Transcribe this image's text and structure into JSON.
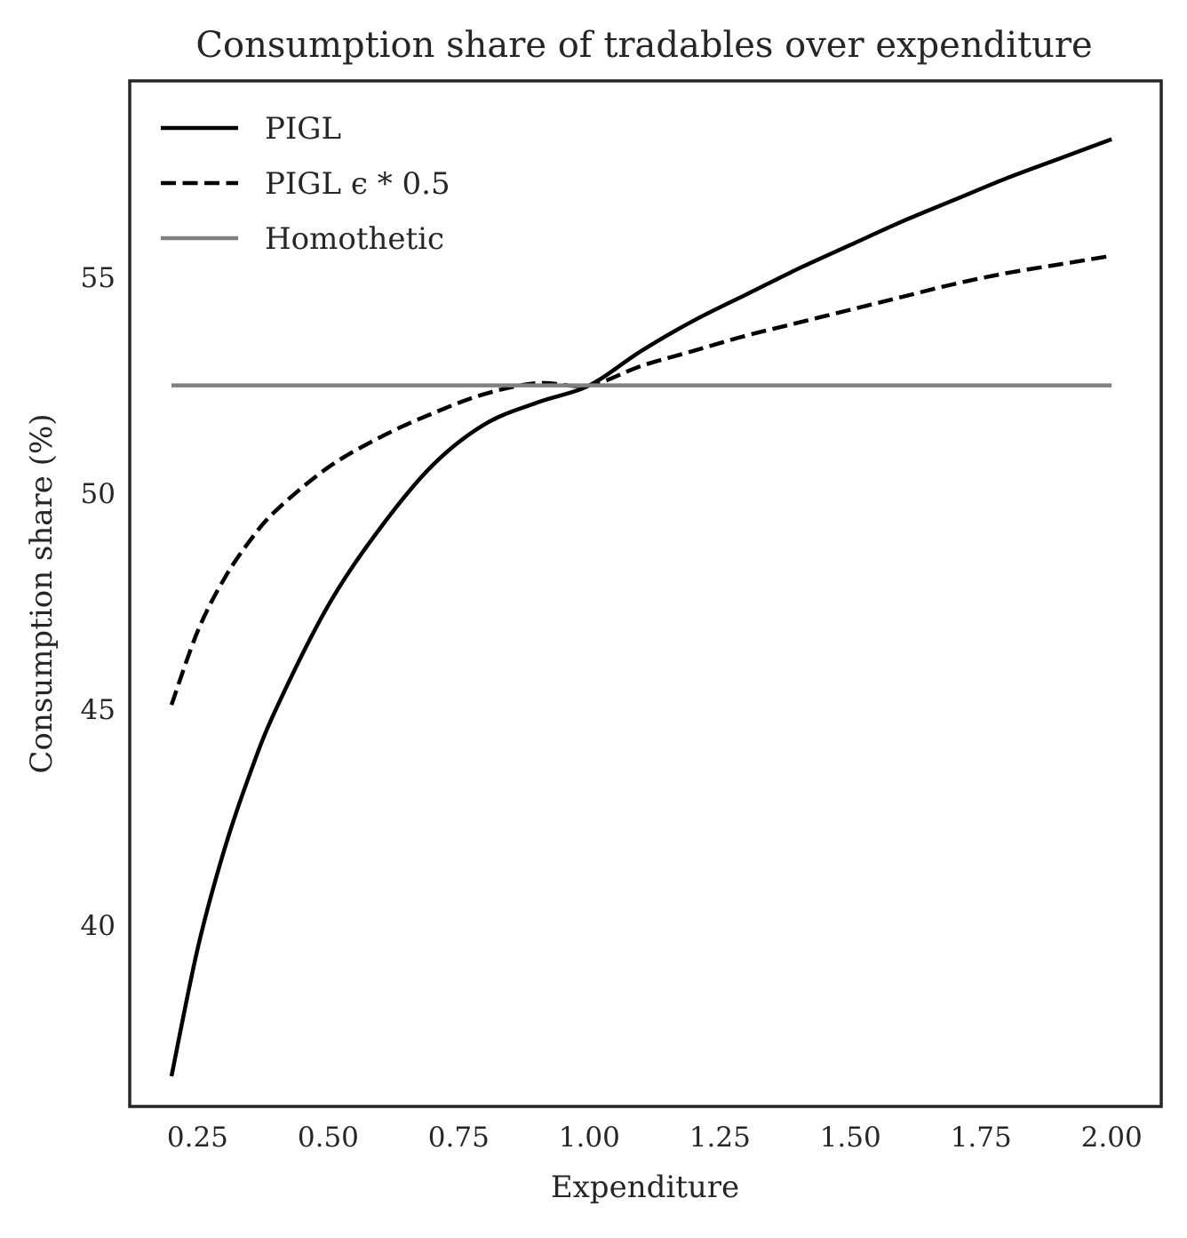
{
  "chart_data": {
    "type": "line",
    "title": "Consumption share of tradables over expenditure",
    "xlabel": "Expenditure",
    "ylabel": "Consumption share (%)",
    "xlim": [
      0.12,
      2.095
    ],
    "ylim": [
      35.8,
      59.55
    ],
    "xticks": [
      0.25,
      0.5,
      0.75,
      1.0,
      1.25,
      1.5,
      1.75,
      2.0
    ],
    "xtick_labels": [
      "0.25",
      "0.50",
      "0.75",
      "1.00",
      "1.25",
      "1.50",
      "1.75",
      "2.00"
    ],
    "yticks": [
      40,
      45,
      50,
      55
    ],
    "ytick_labels": [
      "40",
      "45",
      "50",
      "55"
    ],
    "grid": false,
    "legend_position": "top-left",
    "x": [
      0.2,
      0.25,
      0.3,
      0.35,
      0.4,
      0.5,
      0.6,
      0.7,
      0.8,
      0.9,
      1.0,
      1.1,
      1.2,
      1.3,
      1.4,
      1.5,
      1.6,
      1.7,
      1.8,
      1.9,
      2.0
    ],
    "series": [
      {
        "name": "PIGL",
        "color": "#000000",
        "dash": "solid",
        "values": [
          36.5,
          39.45,
          41.7,
          43.5,
          45.0,
          47.4,
          49.2,
          50.65,
          51.6,
          52.1,
          52.5,
          53.3,
          54.0,
          54.6,
          55.2,
          55.75,
          56.3,
          56.8,
          57.3,
          57.75,
          58.2
        ]
      },
      {
        "name": "PIGL ϵ * 0.5",
        "color": "#000000",
        "dash": "dashed",
        "values": [
          45.1,
          46.8,
          48.0,
          48.9,
          49.6,
          50.6,
          51.3,
          51.85,
          52.3,
          52.55,
          52.5,
          52.95,
          53.3,
          53.65,
          53.95,
          54.25,
          54.55,
          54.85,
          55.1,
          55.3,
          55.5
        ]
      },
      {
        "name": "Homothetic",
        "color": "#808080",
        "dash": "solid",
        "values": [
          52.5,
          52.5,
          52.5,
          52.5,
          52.5,
          52.5,
          52.5,
          52.5,
          52.5,
          52.5,
          52.5,
          52.5,
          52.5,
          52.5,
          52.5,
          52.5,
          52.5,
          52.5,
          52.5,
          52.5,
          52.5
        ]
      }
    ]
  }
}
